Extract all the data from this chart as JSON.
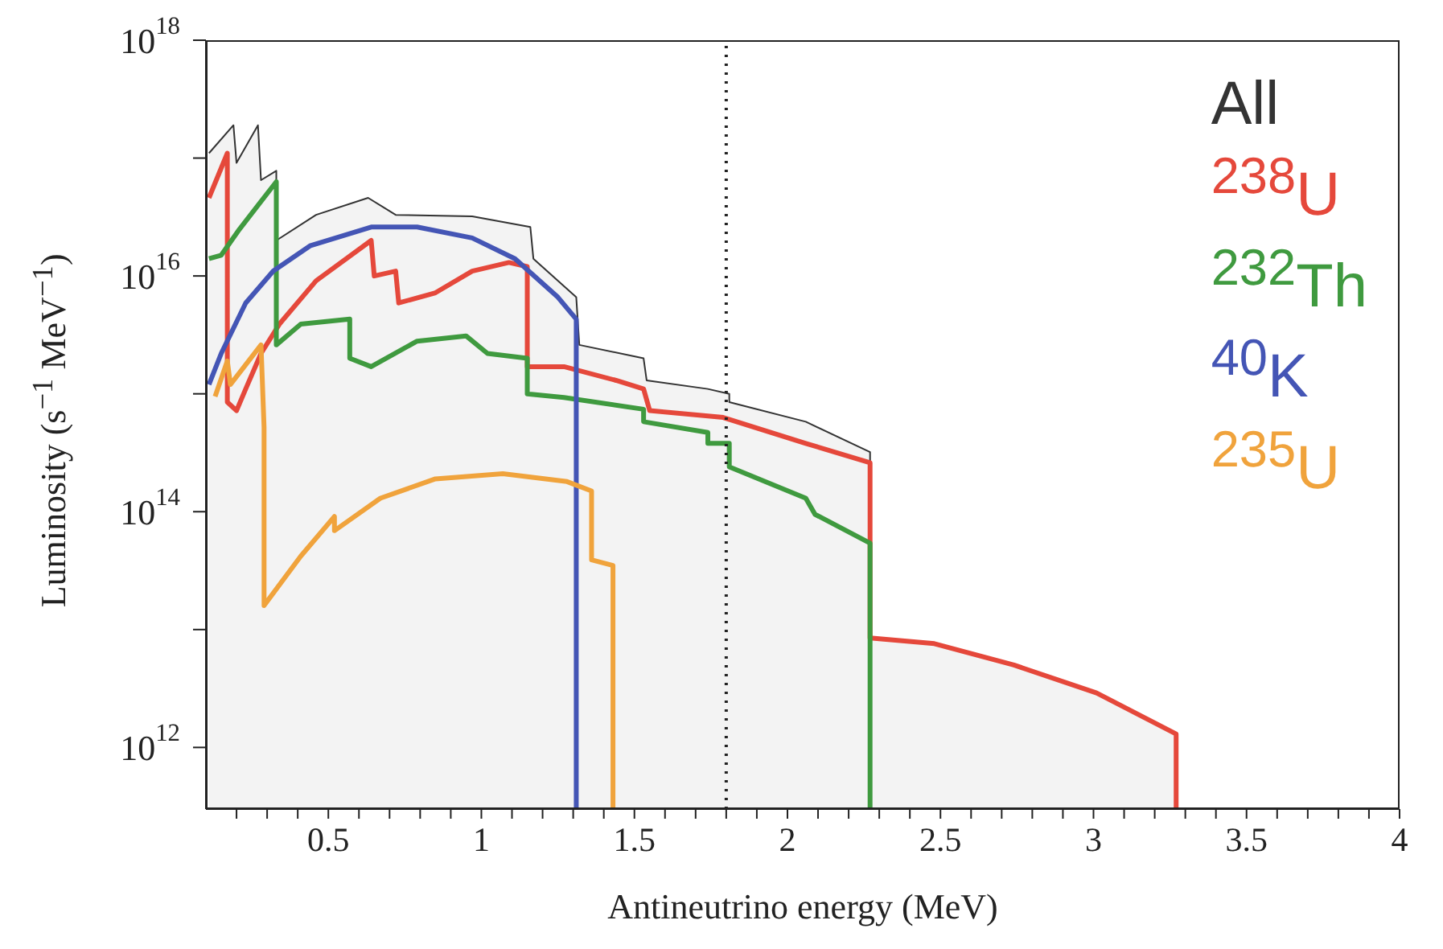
{
  "chart_data": {
    "type": "line",
    "xlabel": "Antineutrino energy (MeV)",
    "ylabel": "Luminosity (s$^{−1}$ MeV$^{−1}$)",
    "log": "y",
    "legend": "top right",
    "xlim": [
      0.1,
      4
    ],
    "xticks": [
      {
        "value": 0.2,
        "label": null
      },
      {
        "value": 0.3,
        "label": null
      },
      {
        "value": 0.4,
        "label": null
      },
      0.5,
      {
        "value": 0.6,
        "label": null
      },
      {
        "value": 0.7,
        "label": null
      },
      {
        "value": 0.8,
        "label": null
      },
      {
        "value": 0.9,
        "label": null
      },
      1,
      {
        "value": 1.1,
        "label": null
      },
      {
        "value": 1.2,
        "label": null
      },
      {
        "value": 1.3,
        "label": null
      },
      {
        "value": 1.4,
        "label": null
      },
      1.5,
      {
        "value": 1.6,
        "label": null
      },
      {
        "value": 1.7,
        "label": null
      },
      {
        "value": 1.8,
        "label": null
      },
      {
        "value": 1.9,
        "label": null
      },
      2,
      {
        "value": 2.1,
        "label": null
      },
      {
        "value": 2.2,
        "label": null
      },
      {
        "value": 2.3,
        "label": null
      },
      {
        "value": 2.4,
        "label": null
      },
      2.5,
      {
        "value": 2.6,
        "label": null
      },
      {
        "value": 2.7,
        "label": null
      },
      {
        "value": 2.8,
        "label": null
      },
      {
        "value": 2.9,
        "label": null
      },
      3,
      {
        "value": 3.1,
        "label": null
      },
      {
        "value": 3.2,
        "label": null
      },
      {
        "value": 3.3,
        "label": null
      },
      {
        "value": 3.4,
        "label": null
      },
      3.5,
      {
        "value": 3.6,
        "label": null
      },
      {
        "value": 3.7,
        "label": null
      },
      {
        "value": 3.8,
        "label": null
      },
      {
        "value": 3.9,
        "label": null
      },
      4
    ],
    "ylim": [
      300000000000.0,
      1e+18
    ],
    "yticks": [
      {
        "value": 1000000000000.0,
        "label": "10$^{12}$"
      },
      {
        "value": 10000000000000.0,
        "label": null
      },
      {
        "value": 100000000000000.0,
        "label": "10$^{14}$"
      },
      {
        "value": 1000000000000000.0,
        "label": null
      },
      {
        "value": 1e+16,
        "label": "10$^{16}$"
      },
      {
        "value": 1e+17,
        "label": null
      },
      {
        "value": 1e+18,
        "label": "10$^{18}$"
      }
    ],
    "ref_lines": [
      {
        "axis": "x",
        "value": 1.8,
        "color": "#222222",
        "line_style": "dotted"
      }
    ],
    "series": [
      {
        "name": "All",
        "type": "area",
        "color": "#333333",
        "x": [
          0.11,
          0.19,
          0.2,
          0.27,
          0.28,
          0.33,
          0.33,
          0.46,
          0.63,
          0.72,
          0.97,
          1.16,
          1.17,
          1.31,
          1.32,
          1.53,
          1.54,
          1.74,
          1.81,
          1.81,
          2.06,
          2.27,
          2.27,
          2.48,
          2.74,
          3.01,
          3.27,
          3.27
        ],
        "values": [
          1.1e+17,
          1.9e+17,
          9.1e+16,
          1.9e+17,
          6.5e+16,
          7.8e+16,
          2e+16,
          3.3e+16,
          4.6e+16,
          3.3e+16,
          3.2e+16,
          2.6e+16,
          1.4e+16,
          6600000000000000.0,
          2600000000000000.0,
          2000000000000000.0,
          1300000000000000.0,
          1100000000000000.0,
          1000000000000000.0,
          850000000000000.0,
          580000000000000.0,
          320000000000000.0,
          8500000000000.0,
          7600000000000.0,
          5000000000000.0,
          2900000000000.0,
          1300000000000.0,
          300000000000.0
        ]
      },
      {
        "name": "$^{238}$U",
        "color": "#e5483b",
        "x": [
          0.11,
          0.17,
          0.17,
          0.2,
          0.23,
          0.28,
          0.34,
          0.46,
          0.64,
          0.65,
          0.72,
          0.73,
          0.85,
          0.97,
          1.09,
          1.15,
          1.15,
          1.27,
          1.44,
          1.53,
          1.55,
          1.79,
          2.06,
          2.27,
          2.27,
          2.48,
          2.74,
          3.01,
          3.27,
          3.27
        ],
        "values": [
          4.6e+16,
          1.1e+17,
          850000000000000.0,
          720000000000000.0,
          1100000000000000.0,
          2200000000000000.0,
          3900000000000000.0,
          9100000000000000.0,
          2e+16,
          1e+16,
          1.1e+16,
          5900000000000000.0,
          7200000000000000.0,
          1.1e+16,
          1.3e+16,
          1.2e+16,
          1700000000000000.0,
          1700000000000000.0,
          1300000000000000.0,
          1100000000000000.0,
          720000000000000.0,
          630000000000000.0,
          380000000000000.0,
          260000000000000.0,
          8500000000000.0,
          7600000000000.0,
          5000000000000.0,
          2900000000000.0,
          1300000000000.0,
          300000000000.0
        ]
      },
      {
        "name": "$^{232}$Th",
        "color": "#3f9a3f",
        "x": [
          0.11,
          0.15,
          0.21,
          0.33,
          0.33,
          0.41,
          0.57,
          0.57,
          0.64,
          0.79,
          0.95,
          1.02,
          1.15,
          1.15,
          1.27,
          1.53,
          1.53,
          1.74,
          1.74,
          1.81,
          1.81,
          2.06,
          2.09,
          2.27,
          2.27
        ],
        "values": [
          1.4e+16,
          1.5e+16,
          2.5e+16,
          6.3e+16,
          2600000000000000.0,
          3900000000000000.0,
          4300000000000000.0,
          2000000000000000.0,
          1700000000000000.0,
          2800000000000000.0,
          3100000000000000.0,
          2200000000000000.0,
          2000000000000000.0,
          1000000000000000.0,
          930000000000000.0,
          740000000000000.0,
          580000000000000.0,
          470000000000000.0,
          380000000000000.0,
          380000000000000.0,
          240000000000000.0,
          130000000000000.0,
          95000000000000.0,
          54000000000000.0,
          300000000000.0
        ]
      },
      {
        "name": "$^{40}$K",
        "color": "#4455b5",
        "x": [
          0.11,
          0.15,
          0.23,
          0.32,
          0.44,
          0.64,
          0.79,
          0.97,
          1.11,
          1.25,
          1.31,
          1.31
        ],
        "values": [
          1200000000000000.0,
          2200000000000000.0,
          5900000000000000.0,
          1.1e+16,
          1.8e+16,
          2.6e+16,
          2.6e+16,
          2.1e+16,
          1.4e+16,
          6600000000000000.0,
          4300000000000000.0,
          300000000000.0
        ]
      },
      {
        "name": "$^{235}$U",
        "color": "#f0a33c",
        "x": [
          0.13,
          0.17,
          0.18,
          0.28,
          0.29,
          0.29,
          0.41,
          0.52,
          0.52,
          0.67,
          0.85,
          1.07,
          1.28,
          1.36,
          1.36,
          1.43,
          1.43
        ],
        "values": [
          950000000000000.0,
          1900000000000000.0,
          1200000000000000.0,
          2600000000000000.0,
          520000000000000.0,
          16000000000000.0,
          42000000000000.0,
          91000000000000.0,
          69000000000000.0,
          130000000000000.0,
          190000000000000.0,
          210000000000000.0,
          180000000000000.0,
          150000000000000.0,
          39000000000000.0,
          35000000000000.0,
          300000000000.0
        ]
      }
    ]
  }
}
